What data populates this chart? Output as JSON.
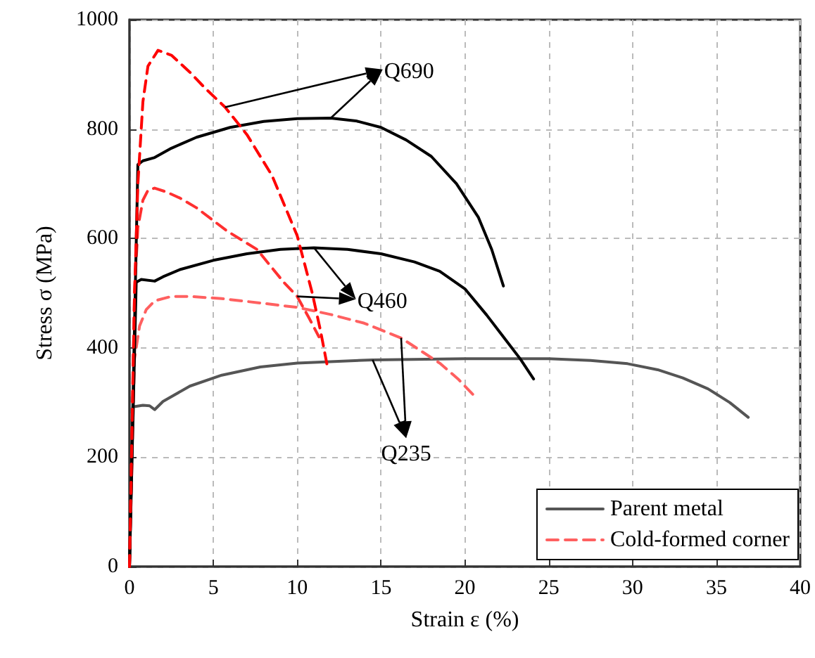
{
  "chart_data": {
    "type": "line",
    "xlabel": "Strain ε (%)",
    "ylabel": "Stress σ (MPa)",
    "xlim": [
      0,
      40
    ],
    "xticks": [
      0,
      5,
      10,
      15,
      20,
      25,
      30,
      35,
      40
    ],
    "ylim": [
      0,
      1000
    ],
    "yticks": [
      0,
      200,
      400,
      600,
      800,
      1000
    ],
    "grid": true,
    "legend": "bottom right",
    "annotations": [
      {
        "text": "Q690",
        "x": 5.7,
        "y": 840
      },
      {
        "text": "Q460",
        "x": 11,
        "y": 583
      },
      {
        "text": "Q235",
        "x": 14.5,
        "y": 378
      }
    ],
    "series": [
      {
        "name": "Parent metal",
        "color": "#555555",
        "line_style": "solid",
        "x": [
          0,
          0.2,
          0.8,
          1.2,
          1.5,
          2,
          3.6,
          5.5,
          7.8,
          10,
          14.5,
          20,
          25,
          27.5,
          29.7,
          31.5,
          33,
          34.5,
          35.8,
          36.9
        ],
        "values": [
          0,
          292,
          295,
          294,
          287,
          302,
          330,
          350,
          365,
          372,
          378,
          380,
          380,
          377,
          371,
          360,
          345,
          325,
          300,
          273
        ]
      },
      {
        "name": "Cold-formed corner",
        "color": "#ff6060",
        "line_style": "dashed",
        "x": [
          0,
          0.3,
          0.6,
          1,
          1.5,
          2.5,
          3.6,
          5.5,
          7.8,
          10,
          12,
          14,
          16.2,
          17.5,
          18.5,
          19.6,
          20.6
        ],
        "values": [
          0,
          380,
          440,
          470,
          486,
          494,
          494,
          490,
          482,
          474,
          461,
          445,
          418,
          392,
          372,
          343,
          311
        ]
      },
      {
        "color": "#000000",
        "line_style": "solid",
        "x": [
          0,
          0.4,
          0.7,
          1.5,
          2,
          3,
          5,
          7,
          9,
          11,
          13,
          15,
          17,
          18.5,
          20,
          21.3,
          22.3,
          23.3,
          24.1
        ],
        "values": [
          0,
          520,
          525,
          522,
          530,
          543,
          560,
          572,
          580,
          583,
          580,
          572,
          557,
          540,
          508,
          460,
          420,
          380,
          343
        ]
      },
      {
        "color": "#ff3030",
        "line_style": "dashed",
        "x": [
          0,
          0.3,
          0.5,
          0.8,
          1.1,
          1.5,
          2.2,
          3,
          4,
          5.8,
          7.6,
          9.2,
          10,
          10.7,
          11.3
        ],
        "values": [
          0,
          500,
          620,
          670,
          688,
          692,
          685,
          674,
          656,
          614,
          580,
          520,
          494,
          455,
          420
        ]
      },
      {
        "color": "#000000",
        "line_style": "solid",
        "x": [
          0,
          0.5,
          0.8,
          1.5,
          2.5,
          4,
          6,
          8,
          10,
          12,
          13.5,
          15,
          16.5,
          18,
          19.5,
          20.8,
          21.6,
          22.3
        ],
        "values": [
          0,
          735,
          742,
          748,
          765,
          785,
          803,
          814,
          819,
          820,
          815,
          803,
          780,
          750,
          700,
          639,
          580,
          513
        ]
      },
      {
        "color": "#ff0000",
        "line_style": "dashed",
        "x": [
          0,
          0.3,
          0.5,
          0.8,
          1.1,
          1.7,
          2.5,
          3.6,
          4.5,
          5.7,
          7,
          8.5,
          10,
          10.9,
          11.4,
          11.8
        ],
        "values": [
          0,
          500,
          700,
          850,
          915,
          944,
          935,
          904,
          875,
          840,
          790,
          715,
          605,
          500,
          430,
          366
        ]
      }
    ]
  }
}
